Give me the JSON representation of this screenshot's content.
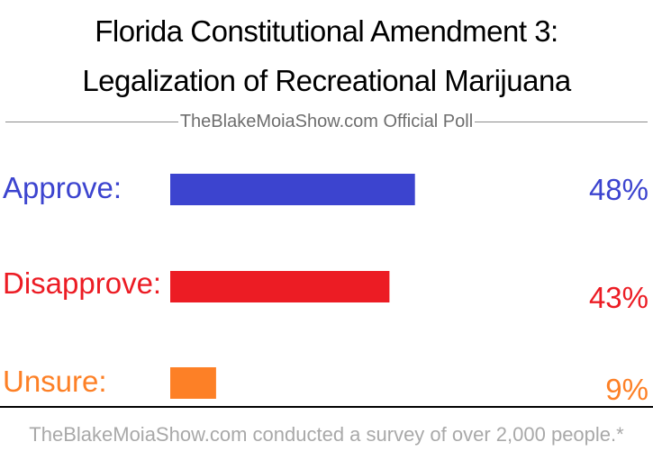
{
  "title_line1": "Florida Constitutional Amendment 3:",
  "title_line2": "Legalization of Recreational Marijuana",
  "subtitle": "TheBlakeMoiaShow.com Official Poll",
  "footer": "TheBlakeMoiaShow.com conducted a survey of over 2,000 people.*",
  "chart_data": {
    "type": "bar",
    "orientation": "horizontal",
    "categories": [
      "Approve:",
      "Disapprove:",
      "Unsure:"
    ],
    "values": [
      48,
      43,
      9
    ],
    "value_labels": [
      "48%",
      "43%",
      "9%"
    ],
    "colors": [
      "#3c44cf",
      "#ec1c24",
      "#fd8026"
    ],
    "unit": "%",
    "xlim": [
      0,
      100
    ],
    "grid": false,
    "legend": "none"
  }
}
